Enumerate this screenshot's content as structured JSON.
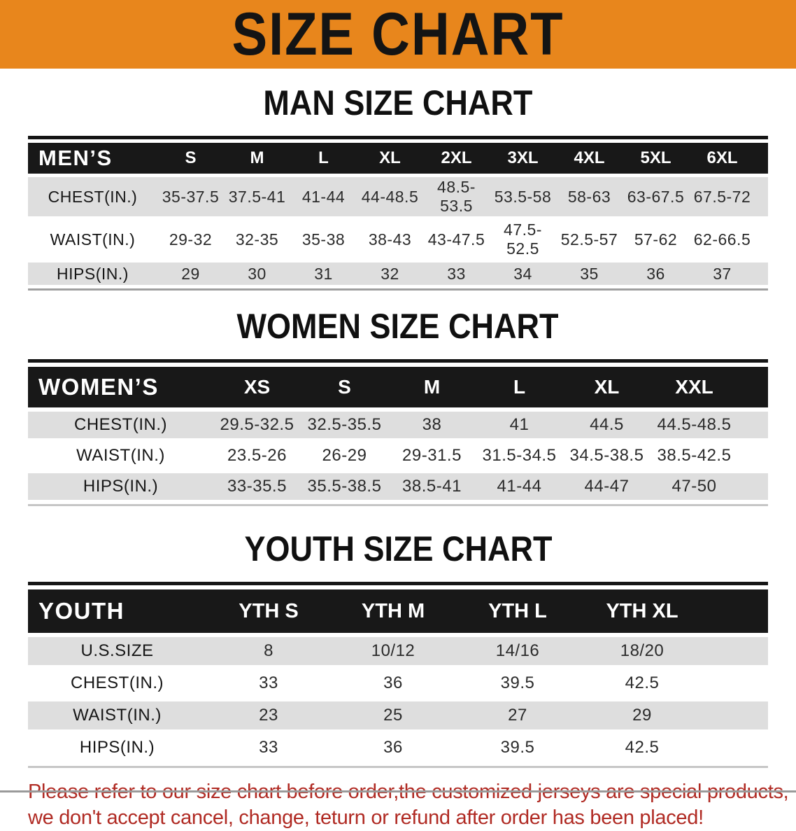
{
  "banner": {
    "title": "SIZE CHART",
    "bg_color": "#E8861C"
  },
  "colors": {
    "header_bar": "#181818",
    "row_alt": "#DEDEDE",
    "disclaimer_text": "#B02A23"
  },
  "sections": [
    {
      "heading": "MAN SIZE CHART",
      "group_label": "MEN’S",
      "columns": [
        "S",
        "M",
        "L",
        "XL",
        "2XL",
        "3XL",
        "4XL",
        "5XL",
        "6XL"
      ],
      "rows": [
        {
          "label": "CHEST(IN.)",
          "values": [
            "35-37.5",
            "37.5-41",
            "41-44",
            "44-48.5",
            "48.5-53.5",
            "53.5-58",
            "58-63",
            "63-67.5",
            "67.5-72"
          ]
        },
        {
          "label": "WAIST(IN.)",
          "values": [
            "29-32",
            "32-35",
            "35-38",
            "38-43",
            "43-47.5",
            "47.5-52.5",
            "52.5-57",
            "57-62",
            "62-66.5"
          ]
        },
        {
          "label": "HIPS(IN.)",
          "values": [
            "29",
            "30",
            "31",
            "32",
            "33",
            "34",
            "35",
            "36",
            "37"
          ]
        }
      ]
    },
    {
      "heading": "WOMEN SIZE CHART",
      "group_label": "WOMEN’S",
      "columns": [
        "XS",
        "S",
        "M",
        "L",
        "XL",
        "XXL"
      ],
      "rows": [
        {
          "label": "CHEST(IN.)",
          "values": [
            "29.5-32.5",
            "32.5-35.5",
            "38",
            "41",
            "44.5",
            "44.5-48.5"
          ]
        },
        {
          "label": "WAIST(IN.)",
          "values": [
            "23.5-26",
            "26-29",
            "29-31.5",
            "31.5-34.5",
            "34.5-38.5",
            "38.5-42.5"
          ]
        },
        {
          "label": "HIPS(IN.)",
          "values": [
            "33-35.5",
            "35.5-38.5",
            "38.5-41",
            "41-44",
            "44-47",
            "47-50"
          ]
        }
      ]
    },
    {
      "heading": "YOUTH SIZE CHART",
      "group_label": "YOUTH",
      "columns": [
        "YTH S",
        "YTH M",
        "YTH L",
        "YTH XL"
      ],
      "rows": [
        {
          "label": "U.S.SIZE",
          "values": [
            "8",
            "10/12",
            "14/16",
            "18/20"
          ]
        },
        {
          "label": "CHEST(IN.)",
          "values": [
            "33",
            "36",
            "39.5",
            "42.5"
          ]
        },
        {
          "label": "WAIST(IN.)",
          "values": [
            "23",
            "25",
            "27",
            "29"
          ]
        },
        {
          "label": "HIPS(IN.)",
          "values": [
            "33",
            "36",
            "39.5",
            "42.5"
          ]
        }
      ]
    }
  ],
  "disclaimer": {
    "line1": "Please refer to our size chart before order,the customized jerseys are special products,",
    "line2": "we don't accept cancel, change, teturn or refund after order has been placed!"
  }
}
